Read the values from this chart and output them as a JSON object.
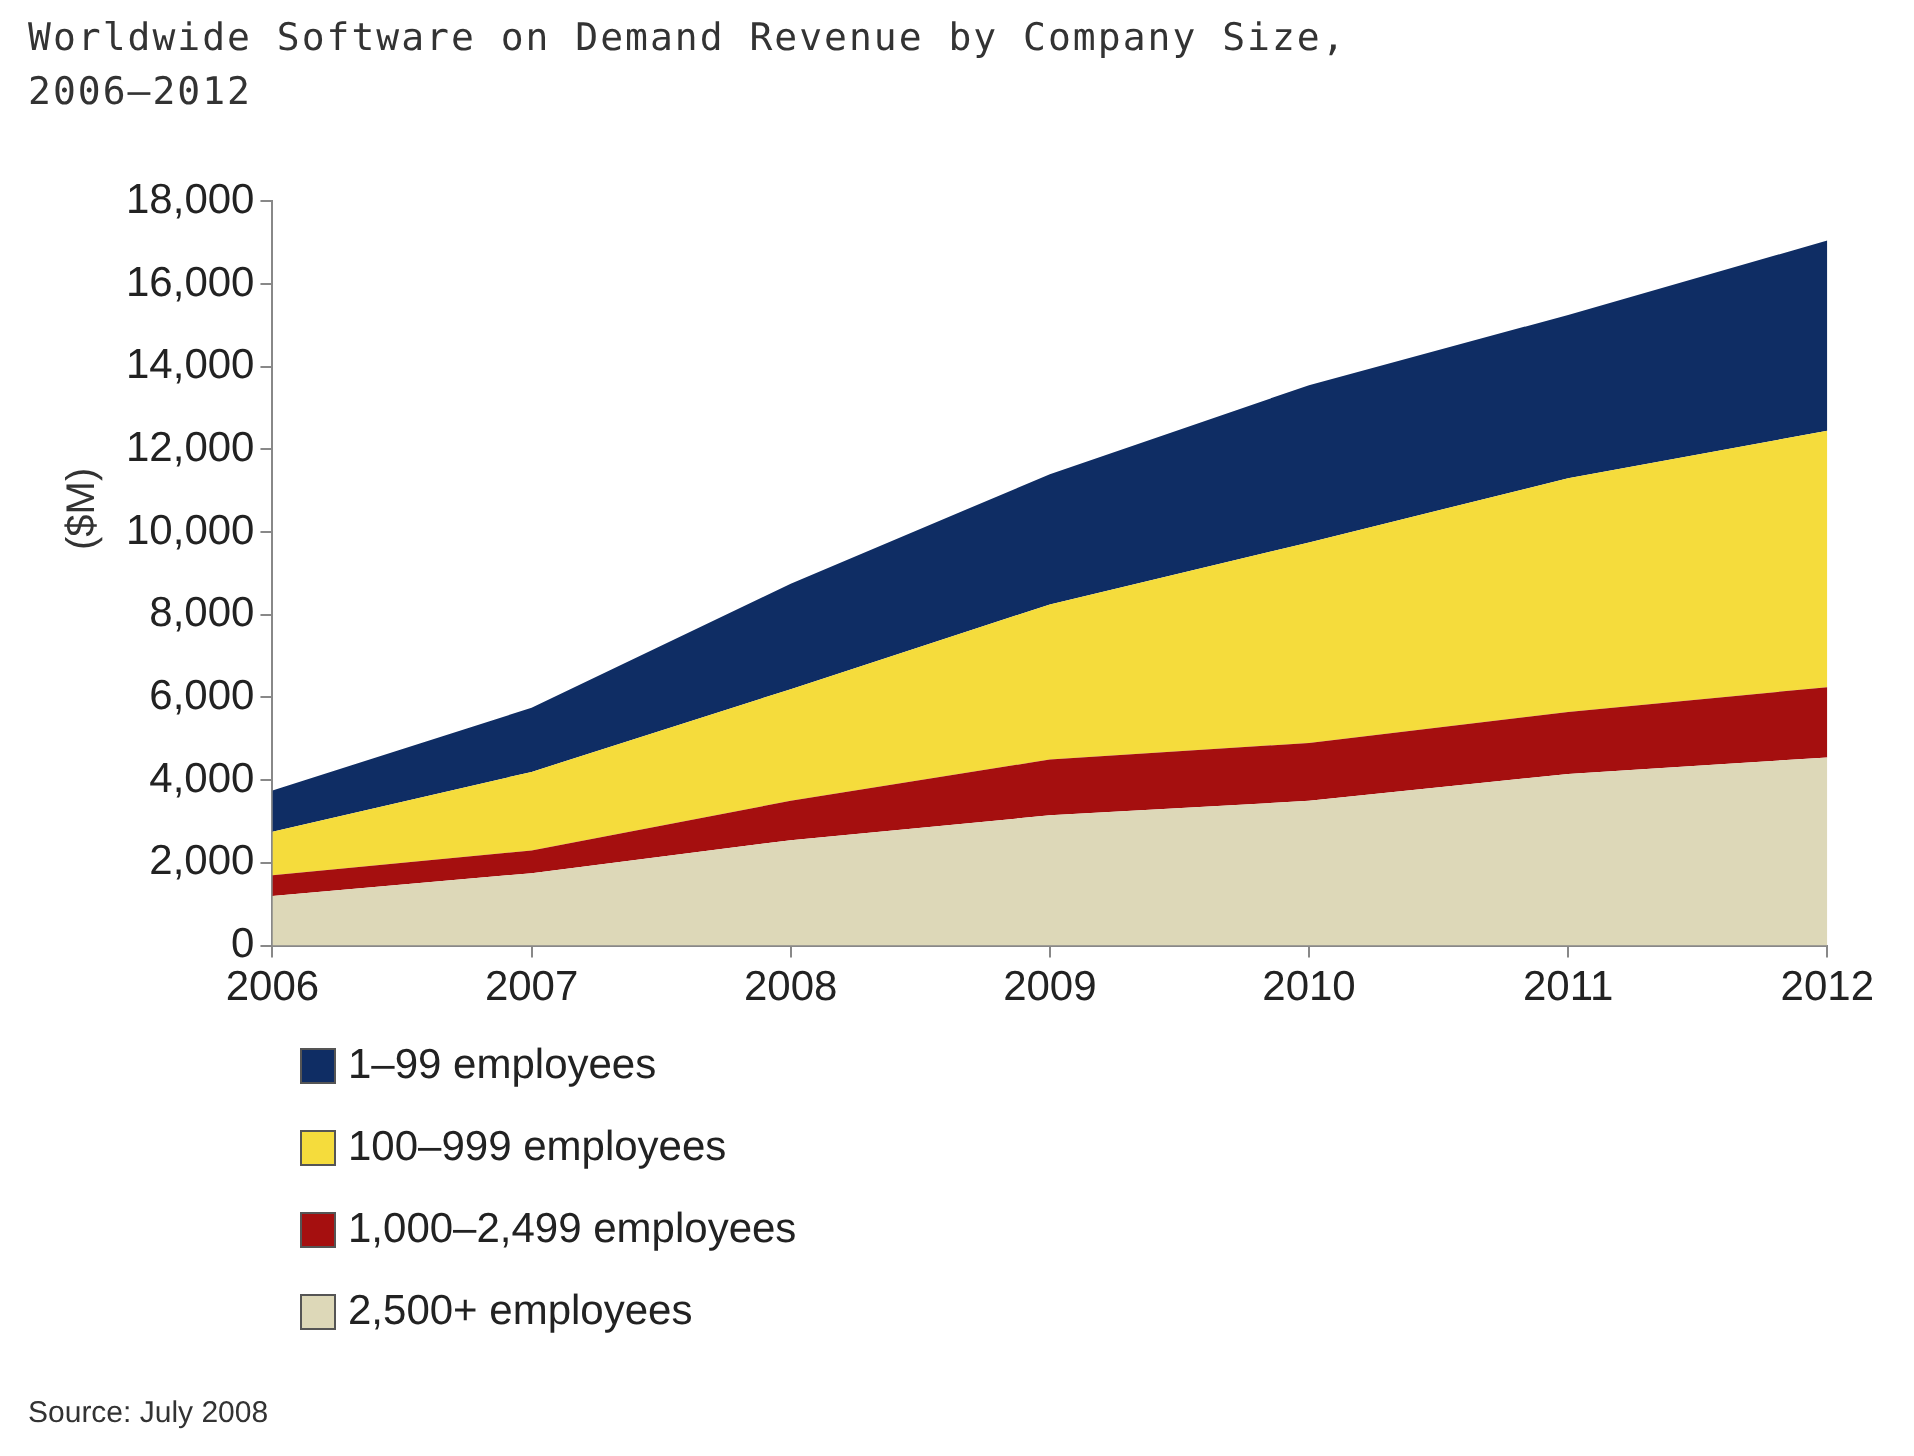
{
  "chart_data": {
    "type": "area",
    "title": "Worldwide Software on Demand Revenue by Company Size, 2006–2012",
    "ylabel": "($M)",
    "stacked": true,
    "grid": false,
    "legend": "bottom",
    "x": [
      2006,
      2007,
      2008,
      2009,
      2010,
      2011,
      2012
    ],
    "xlim": [
      2006,
      2012
    ],
    "xticks": [
      {
        "value": 2006,
        "label": "2006"
      },
      {
        "value": 2007,
        "label": "2007"
      },
      {
        "value": 2008,
        "label": "2008"
      },
      {
        "value": 2009,
        "label": "2009"
      },
      {
        "value": 2010,
        "label": "2010"
      },
      {
        "value": 2011,
        "label": "2011"
      },
      {
        "value": 2012,
        "label": "2012"
      }
    ],
    "ylim": [
      0,
      18000
    ],
    "yticks": [
      0,
      {
        "value": 2000,
        "label": "2,000"
      },
      {
        "value": 4000,
        "label": "4,000"
      },
      {
        "value": 6000,
        "label": "6,000"
      },
      {
        "value": 8000,
        "label": "8,000"
      },
      {
        "value": 10000,
        "label": "10,000"
      },
      {
        "value": 12000,
        "label": "12,000"
      },
      {
        "value": 14000,
        "label": "14,000"
      },
      {
        "value": 16000,
        "label": "16,000"
      },
      {
        "value": 18000,
        "label": "18,000"
      }
    ],
    "series": [
      {
        "name": "2,500+ employees",
        "color": "#ddd8b8",
        "values": [
          1200,
          1750,
          2550,
          3150,
          3500,
          4150,
          4550
        ]
      },
      {
        "name": "1,000–2,499 employees",
        "color": "#a50f0f",
        "values": [
          500,
          550,
          950,
          1350,
          1400,
          1500,
          1700
        ]
      },
      {
        "name": "100–999 employees",
        "color": "#f5dc3c",
        "values": [
          1050,
          1900,
          2700,
          3750,
          4850,
          5650,
          6200
        ]
      },
      {
        "name": "1–99 employees",
        "color": "#0f2d64",
        "values": [
          1000,
          1550,
          2550,
          3150,
          3800,
          3950,
          4600
        ]
      }
    ],
    "annotations": [
      "Source: July 2008"
    ]
  }
}
